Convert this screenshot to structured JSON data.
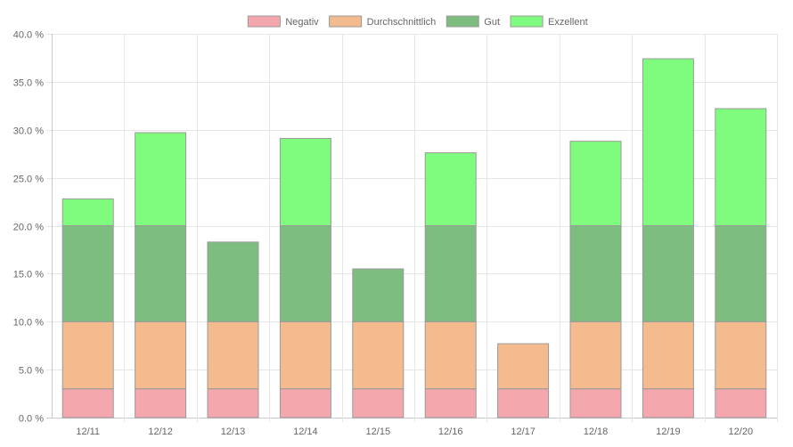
{
  "chart_data": {
    "type": "bar",
    "stacked": true,
    "categories": [
      "12/11",
      "12/12",
      "12/13",
      "12/14",
      "12/15",
      "12/16",
      "12/17",
      "12/18",
      "12/19",
      "12/20"
    ],
    "series": [
      {
        "name": "Negativ",
        "color": "#f4a8ae",
        "stroke": "#999999",
        "values": [
          3,
          3,
          3,
          3,
          3,
          3,
          3,
          3,
          3,
          3
        ]
      },
      {
        "name": "Durchschnittlich",
        "color": "#f4bc8e",
        "stroke": "#999999",
        "values": [
          7,
          7,
          7,
          7,
          7,
          7,
          4.7,
          7,
          7,
          7
        ]
      },
      {
        "name": "Gut",
        "color": "#7dbd7f",
        "stroke": "#999999",
        "values": [
          10,
          10,
          8.3,
          10,
          5.5,
          10,
          0,
          10,
          10,
          10
        ]
      },
      {
        "name": "Exzellent",
        "color": "#7ffc7d",
        "stroke": "#999999",
        "values": [
          2.8,
          9.7,
          0,
          9.1,
          0,
          7.6,
          0,
          8.8,
          17.4,
          12.2
        ]
      }
    ],
    "y_ticks": [
      "0.0 %",
      "5.0 %",
      "10.0 %",
      "15.0 %",
      "20.0 %",
      "25.0 %",
      "30.0 %",
      "35.0 %",
      "40.0 %"
    ],
    "ylim": [
      0,
      40
    ],
    "grid": true,
    "legend_position": "top"
  }
}
